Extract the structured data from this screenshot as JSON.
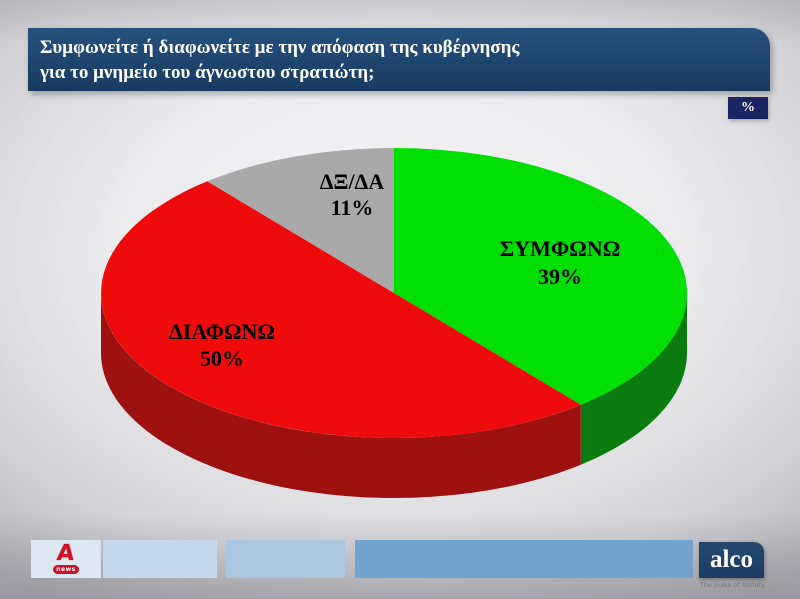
{
  "header": {
    "question_line1": "Συμφωνείτε ή διαφωνείτε με την απόφαση της κυβέρνησης",
    "question_line2": "για το μνημείο του άγνωστου στρατιώτη;",
    "unit_badge": "%"
  },
  "chart_data": {
    "type": "pie",
    "style": "3d",
    "start_angle_deg": 0,
    "direction": "clockwise",
    "unit": "%",
    "slices": [
      {
        "label": "ΣΥΜΦΩΝΩ",
        "value": 39,
        "display": "39%",
        "color": "#00df04",
        "side_color": "#0a7c0e"
      },
      {
        "label": "ΔΙΑΦΩΝΩ",
        "value": 50,
        "display": "50%",
        "color": "#ee0b0b",
        "side_color": "#9f1111"
      },
      {
        "label": "ΔΞ/ΔΑ",
        "value": 11,
        "display": "11%",
        "color": "#a9a9a9",
        "side_color": "#808080"
      }
    ],
    "label_color": "#000000"
  },
  "footer": {
    "alpha_logo": {
      "letter": "A",
      "badge": "news"
    },
    "alco_logo": {
      "text": "alco",
      "tagline": "The pulse of society"
    }
  }
}
